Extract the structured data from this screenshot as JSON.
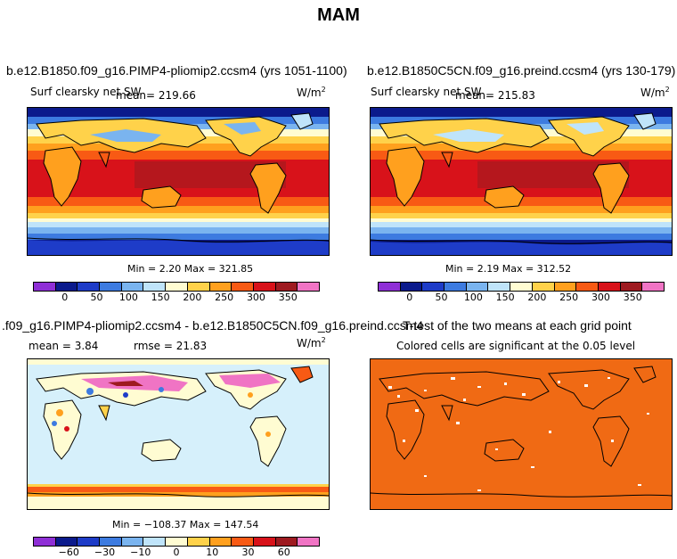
{
  "title": "MAM",
  "panels": {
    "p1": {
      "case": "b.e12.B1850.f09_g16.PIMP4-pliomip2.ccsm4 (yrs 1051-1100)",
      "variable": "Surf clearsky net SW",
      "mean_text": "mean= 219.66",
      "units": "W/m",
      "units_sup": "2",
      "minmax": "Min =    2.20  Max = 321.85"
    },
    "p2": {
      "case": "b.e12.B1850C5CN.f09_g16.preind.ccsm4 (yrs 130-179)",
      "variable": "Surf clearsky net SW",
      "mean_text": "mean= 215.83",
      "units": "W/m",
      "units_sup": "2",
      "minmax": "Min =    2.19  Max = 312.52"
    },
    "p3": {
      "case": ".f09_g16.PIMP4-pliomip2.ccsm4 - b.e12.B1850C5CN.f09_g16.preind.ccsm4",
      "mean_text": "mean =   3.84",
      "rmse_text": "rmse =  21.83",
      "units": "W/m",
      "units_sup": "2",
      "minmax": "Min = −108.37  Max = 147.54"
    },
    "p4": {
      "case": "T-test of the two means at each grid point",
      "note": "Colored cells are significant at the 0.05 level"
    }
  },
  "colorbars": {
    "absolute": {
      "colors": [
        "#8f2fd6",
        "#0b1a8c",
        "#1e3cc8",
        "#3d7be0",
        "#7ab4ef",
        "#bfe4fa",
        "#fffcd2",
        "#ffd24a",
        "#ffa01e",
        "#f85a14",
        "#d8121a",
        "#9e1a20",
        "#f074c4"
      ],
      "labels": [
        "0",
        "50",
        "100",
        "150",
        "200",
        "250",
        "300",
        "350"
      ]
    },
    "difference": {
      "colors": [
        "#8f2fd6",
        "#0b1a8c",
        "#1e3cc8",
        "#3d7be0",
        "#7ab4ef",
        "#bfe4fa",
        "#fffcd2",
        "#ffd24a",
        "#ffa01e",
        "#f85a14",
        "#d8121a",
        "#9e1a20",
        "#f074c4"
      ],
      "labels": [
        "−60",
        "−30",
        "−10",
        "0",
        "10",
        "30",
        "60"
      ]
    }
  }
}
